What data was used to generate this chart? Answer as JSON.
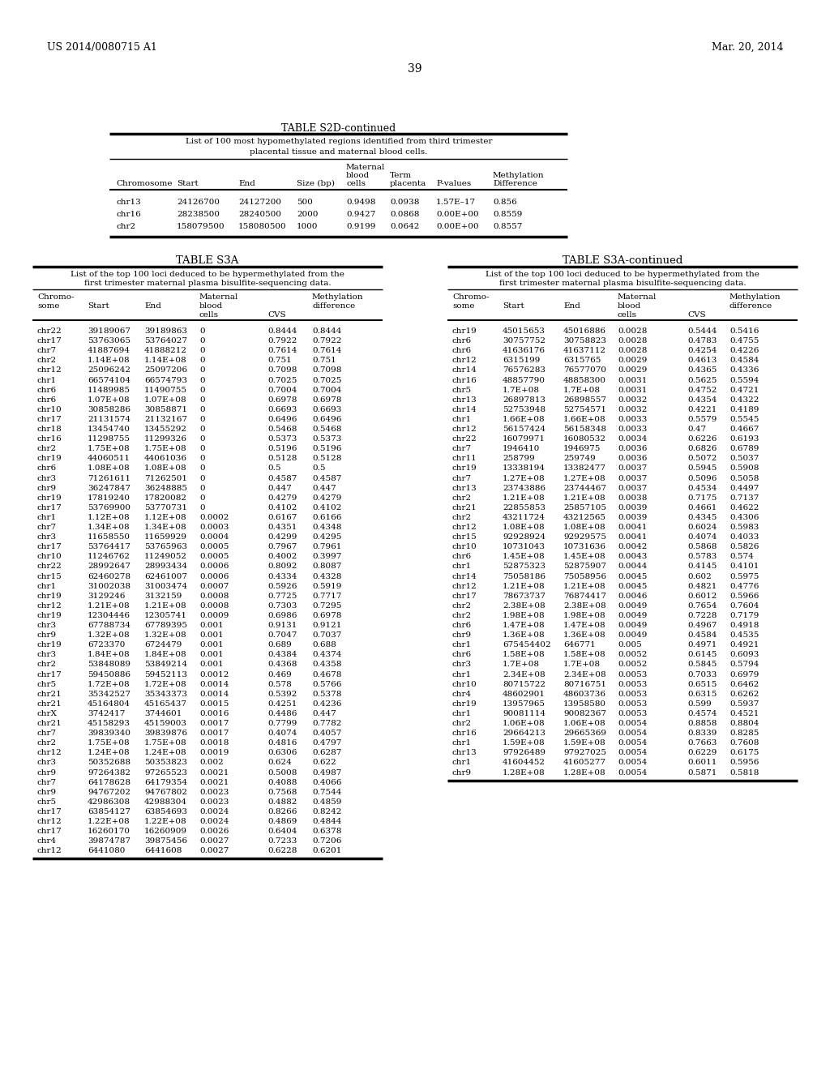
{
  "header_left": "US 2014/0080715 A1",
  "header_right": "Mar. 20, 2014",
  "page_number": "39",
  "table_s2d_title": "TABLE S2D-continued",
  "table_s2d_subtitle1": "List of 100 most hypomethylated regions identified from third trimester",
  "table_s2d_subtitle2": "placental tissue and maternal blood cells.",
  "table_s2d_data": [
    [
      "chr13",
      "24126700",
      "24127200",
      "500",
      "0.9498",
      "0.0938",
      "1.57E–17",
      "0.856"
    ],
    [
      "chr16",
      "28238500",
      "28240500",
      "2000",
      "0.9427",
      "0.0868",
      "0.00E+00",
      "0.8559"
    ],
    [
      "chr2",
      "158079500",
      "158080500",
      "1000",
      "0.9199",
      "0.0642",
      "0.00E+00",
      "0.8557"
    ]
  ],
  "table_s3a_title": "TABLE S3A",
  "table_s3a_subtitle1": "List of the top 100 loci deduced to be hypermethylated from the",
  "table_s3a_subtitle2": "first trimester maternal plasma bisulfite-sequencing data.",
  "table_s3a_data": [
    [
      "chr22",
      "39189067",
      "39189863",
      "0",
      "0.8444",
      "0.8444"
    ],
    [
      "chr17",
      "53763065",
      "53764027",
      "0",
      "0.7922",
      "0.7922"
    ],
    [
      "chr7",
      "41887694",
      "41888212",
      "0",
      "0.7614",
      "0.7614"
    ],
    [
      "chr2",
      "1.14E+08",
      "1.14E+08",
      "0",
      "0.751",
      "0.751"
    ],
    [
      "chr12",
      "25096242",
      "25097206",
      "0",
      "0.7098",
      "0.7098"
    ],
    [
      "chr1",
      "66574104",
      "66574793",
      "0",
      "0.7025",
      "0.7025"
    ],
    [
      "chr6",
      "11489985",
      "11490755",
      "0",
      "0.7004",
      "0.7004"
    ],
    [
      "chr6",
      "1.07E+08",
      "1.07E+08",
      "0",
      "0.6978",
      "0.6978"
    ],
    [
      "chr10",
      "30858286",
      "30858871",
      "0",
      "0.6693",
      "0.6693"
    ],
    [
      "chr17",
      "21131574",
      "21132167",
      "0",
      "0.6496",
      "0.6496"
    ],
    [
      "chr18",
      "13454740",
      "13455292",
      "0",
      "0.5468",
      "0.5468"
    ],
    [
      "chr16",
      "11298755",
      "11299326",
      "0",
      "0.5373",
      "0.5373"
    ],
    [
      "chr2",
      "1.75E+08",
      "1.75E+08",
      "0",
      "0.5196",
      "0.5196"
    ],
    [
      "chr19",
      "44060511",
      "44061036",
      "0",
      "0.5128",
      "0.5128"
    ],
    [
      "chr6",
      "1.08E+08",
      "1.08E+08",
      "0",
      "0.5",
      "0.5"
    ],
    [
      "chr3",
      "71261611",
      "71262501",
      "0",
      "0.4587",
      "0.4587"
    ],
    [
      "chr9",
      "36247847",
      "36248885",
      "0",
      "0.447",
      "0.447"
    ],
    [
      "chr19",
      "17819240",
      "17820082",
      "0",
      "0.4279",
      "0.4279"
    ],
    [
      "chr17",
      "53769900",
      "53770731",
      "0",
      "0.4102",
      "0.4102"
    ],
    [
      "chr1",
      "1.12E+08",
      "1.12E+08",
      "0.0002",
      "0.6167",
      "0.6166"
    ],
    [
      "chr7",
      "1.34E+08",
      "1.34E+08",
      "0.0003",
      "0.4351",
      "0.4348"
    ],
    [
      "chr3",
      "11658550",
      "11659929",
      "0.0004",
      "0.4299",
      "0.4295"
    ],
    [
      "chr17",
      "53764417",
      "53765963",
      "0.0005",
      "0.7967",
      "0.7961"
    ],
    [
      "chr10",
      "11246762",
      "11249052",
      "0.0005",
      "0.4002",
      "0.3997"
    ],
    [
      "chr22",
      "28992647",
      "28993434",
      "0.0006",
      "0.8092",
      "0.8087"
    ],
    [
      "chr15",
      "62460278",
      "62461007",
      "0.0006",
      "0.4334",
      "0.4328"
    ],
    [
      "chr1",
      "31002038",
      "31003474",
      "0.0007",
      "0.5926",
      "0.5919"
    ],
    [
      "chr19",
      "3129246",
      "3132159",
      "0.0008",
      "0.7725",
      "0.7717"
    ],
    [
      "chr12",
      "1.21E+08",
      "1.21E+08",
      "0.0008",
      "0.7303",
      "0.7295"
    ],
    [
      "chr19",
      "12304446",
      "12305741",
      "0.0009",
      "0.6986",
      "0.6978"
    ],
    [
      "chr3",
      "67788734",
      "67789395",
      "0.001",
      "0.9131",
      "0.9121"
    ],
    [
      "chr9",
      "1.32E+08",
      "1.32E+08",
      "0.001",
      "0.7047",
      "0.7037"
    ],
    [
      "chr19",
      "6723370",
      "6724479",
      "0.001",
      "0.689",
      "0.688"
    ],
    [
      "chr3",
      "1.84E+08",
      "1.84E+08",
      "0.001",
      "0.4384",
      "0.4374"
    ],
    [
      "chr2",
      "53848089",
      "53849214",
      "0.001",
      "0.4368",
      "0.4358"
    ],
    [
      "chr17",
      "59450886",
      "59452113",
      "0.0012",
      "0.469",
      "0.4678"
    ],
    [
      "chr5",
      "1.72E+08",
      "1.72E+08",
      "0.0014",
      "0.578",
      "0.5766"
    ],
    [
      "chr21",
      "35342527",
      "35343373",
      "0.0014",
      "0.5392",
      "0.5378"
    ],
    [
      "chr21",
      "45164804",
      "45165437",
      "0.0015",
      "0.4251",
      "0.4236"
    ],
    [
      "chrX",
      "3742417",
      "3744601",
      "0.0016",
      "0.4486",
      "0.447"
    ],
    [
      "chr21",
      "45158293",
      "45159003",
      "0.0017",
      "0.7799",
      "0.7782"
    ],
    [
      "chr7",
      "39839340",
      "39839876",
      "0.0017",
      "0.4074",
      "0.4057"
    ],
    [
      "chr2",
      "1.75E+08",
      "1.75E+08",
      "0.0018",
      "0.4816",
      "0.4797"
    ],
    [
      "chr12",
      "1.24E+08",
      "1.24E+08",
      "0.0019",
      "0.6306",
      "0.6287"
    ],
    [
      "chr3",
      "50352688",
      "50353823",
      "0.002",
      "0.624",
      "0.622"
    ],
    [
      "chr9",
      "97264382",
      "97265523",
      "0.0021",
      "0.5008",
      "0.4987"
    ],
    [
      "chr7",
      "64178628",
      "64179354",
      "0.0021",
      "0.4088",
      "0.4066"
    ],
    [
      "chr9",
      "94767202",
      "94767802",
      "0.0023",
      "0.7568",
      "0.7544"
    ],
    [
      "chr5",
      "42986308",
      "42988304",
      "0.0023",
      "0.4882",
      "0.4859"
    ],
    [
      "chr17",
      "63854127",
      "63854693",
      "0.0024",
      "0.8266",
      "0.8242"
    ],
    [
      "chr12",
      "1.22E+08",
      "1.22E+08",
      "0.0024",
      "0.4869",
      "0.4844"
    ],
    [
      "chr17",
      "16260170",
      "16260909",
      "0.0026",
      "0.6404",
      "0.6378"
    ],
    [
      "chr4",
      "39874787",
      "39875456",
      "0.0027",
      "0.7233",
      "0.7206"
    ],
    [
      "chr12",
      "6441080",
      "6441608",
      "0.0027",
      "0.6228",
      "0.6201"
    ]
  ],
  "table_s3a_cont_title": "TABLE S3A-continued",
  "table_s3a_cont_subtitle1": "List of the top 100 loci deduced to be hypermethylated from the",
  "table_s3a_cont_subtitle2": "first trimester maternal plasma bisulfite-sequencing data.",
  "table_s3a_cont_data": [
    [
      "chr19",
      "45015653",
      "45016886",
      "0.0028",
      "0.5444",
      "0.5416"
    ],
    [
      "chr6",
      "30757752",
      "30758823",
      "0.0028",
      "0.4783",
      "0.4755"
    ],
    [
      "chr6",
      "41636176",
      "41637112",
      "0.0028",
      "0.4254",
      "0.4226"
    ],
    [
      "chr12",
      "6315199",
      "6315765",
      "0.0029",
      "0.4613",
      "0.4584"
    ],
    [
      "chr14",
      "76576283",
      "76577070",
      "0.0029",
      "0.4365",
      "0.4336"
    ],
    [
      "chr16",
      "48857790",
      "48858300",
      "0.0031",
      "0.5625",
      "0.5594"
    ],
    [
      "chr5",
      "1.7E+08",
      "1.7E+08",
      "0.0031",
      "0.4752",
      "0.4721"
    ],
    [
      "chr13",
      "26897813",
      "26898557",
      "0.0032",
      "0.4354",
      "0.4322"
    ],
    [
      "chr14",
      "52753948",
      "52754571",
      "0.0032",
      "0.4221",
      "0.4189"
    ],
    [
      "chr1",
      "1.66E+08",
      "1.66E+08",
      "0.0033",
      "0.5579",
      "0.5545"
    ],
    [
      "chr12",
      "56157424",
      "56158348",
      "0.0033",
      "0.47",
      "0.4667"
    ],
    [
      "chr22",
      "16079971",
      "16080532",
      "0.0034",
      "0.6226",
      "0.6193"
    ],
    [
      "chr7",
      "1946410",
      "1946975",
      "0.0036",
      "0.6826",
      "0.6789"
    ],
    [
      "chr11",
      "258799",
      "259749",
      "0.0036",
      "0.5072",
      "0.5037"
    ],
    [
      "chr19",
      "13338194",
      "13382477",
      "0.0037",
      "0.5945",
      "0.5908"
    ],
    [
      "chr7",
      "1.27E+08",
      "1.27E+08",
      "0.0037",
      "0.5096",
      "0.5058"
    ],
    [
      "chr13",
      "23743886",
      "23744467",
      "0.0037",
      "0.4534",
      "0.4497"
    ],
    [
      "chr2",
      "1.21E+08",
      "1.21E+08",
      "0.0038",
      "0.7175",
      "0.7137"
    ],
    [
      "chr21",
      "22855853",
      "25857105",
      "0.0039",
      "0.4661",
      "0.4622"
    ],
    [
      "chr2",
      "43211724",
      "43212565",
      "0.0039",
      "0.4345",
      "0.4306"
    ],
    [
      "chr12",
      "1.08E+08",
      "1.08E+08",
      "0.0041",
      "0.6024",
      "0.5983"
    ],
    [
      "chr15",
      "92928924",
      "92929575",
      "0.0041",
      "0.4074",
      "0.4033"
    ],
    [
      "chr10",
      "10731043",
      "10731636",
      "0.0042",
      "0.5868",
      "0.5826"
    ],
    [
      "chr6",
      "1.45E+08",
      "1.45E+08",
      "0.0043",
      "0.5783",
      "0.574"
    ],
    [
      "chr1",
      "52875323",
      "52875907",
      "0.0044",
      "0.4145",
      "0.4101"
    ],
    [
      "chr14",
      "75058186",
      "75058956",
      "0.0045",
      "0.602",
      "0.5975"
    ],
    [
      "chr12",
      "1.21E+08",
      "1.21E+08",
      "0.0045",
      "0.4821",
      "0.4776"
    ],
    [
      "chr17",
      "78673737",
      "76874417",
      "0.0046",
      "0.6012",
      "0.5966"
    ],
    [
      "chr2",
      "2.38E+08",
      "2.38E+08",
      "0.0049",
      "0.7654",
      "0.7604"
    ],
    [
      "chr2",
      "1.98E+08",
      "1.98E+08",
      "0.0049",
      "0.7228",
      "0.7179"
    ],
    [
      "chr6",
      "1.47E+08",
      "1.47E+08",
      "0.0049",
      "0.4967",
      "0.4918"
    ],
    [
      "chr9",
      "1.36E+08",
      "1.36E+08",
      "0.0049",
      "0.4584",
      "0.4535"
    ],
    [
      "chr1",
      "675454402",
      "646771",
      "0.005",
      "0.4971",
      "0.4921"
    ],
    [
      "chr6",
      "1.58E+08",
      "1.58E+08",
      "0.0052",
      "0.6145",
      "0.6093"
    ],
    [
      "chr3",
      "1.7E+08",
      "1.7E+08",
      "0.0052",
      "0.5845",
      "0.5794"
    ],
    [
      "chr1",
      "2.34E+08",
      "2.34E+08",
      "0.0053",
      "0.7033",
      "0.6979"
    ],
    [
      "chr10",
      "80715722",
      "80716751",
      "0.0053",
      "0.6515",
      "0.6462"
    ],
    [
      "chr4",
      "48602901",
      "48603736",
      "0.0053",
      "0.6315",
      "0.6262"
    ],
    [
      "chr19",
      "13957965",
      "13958580",
      "0.0053",
      "0.599",
      "0.5937"
    ],
    [
      "chr1",
      "90081114",
      "90082367",
      "0.0053",
      "0.4574",
      "0.4521"
    ],
    [
      "chr2",
      "1.06E+08",
      "1.06E+08",
      "0.0054",
      "0.8858",
      "0.8804"
    ],
    [
      "chr16",
      "29664213",
      "29665369",
      "0.0054",
      "0.8339",
      "0.8285"
    ],
    [
      "chr1",
      "1.59E+08",
      "1.59E+08",
      "0.0054",
      "0.7663",
      "0.7608"
    ],
    [
      "chr13",
      "97926489",
      "97927025",
      "0.0054",
      "0.6229",
      "0.6175"
    ],
    [
      "chr1",
      "41604452",
      "41605277",
      "0.0054",
      "0.6011",
      "0.5956"
    ],
    [
      "chr9",
      "1.28E+08",
      "1.28E+08",
      "0.0054",
      "0.5871",
      "0.5818"
    ]
  ]
}
